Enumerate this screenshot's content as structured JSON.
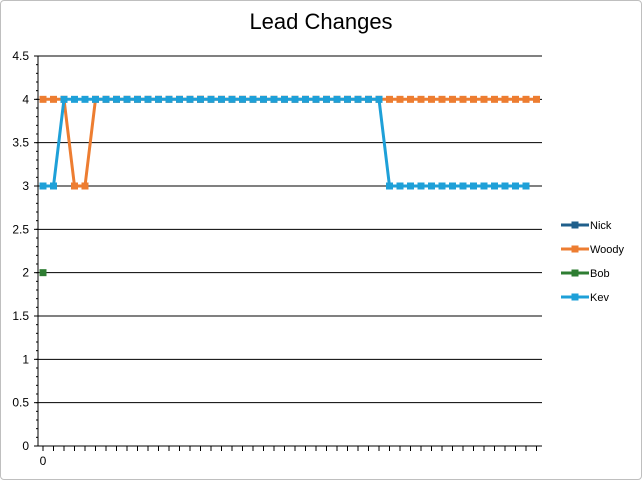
{
  "chart_data": {
    "type": "line",
    "title": "Lead Changes",
    "xlabel": "",
    "ylabel": "",
    "ylim": [
      0,
      4.5
    ],
    "y_ticks": [
      "0",
      "0.5",
      "1",
      "1.5",
      "2",
      "2.5",
      "3",
      "3.5",
      "4",
      "4.5"
    ],
    "x_tick_labels": [
      "0"
    ],
    "x_count": 48,
    "grid": true,
    "legend_position": "right",
    "series": [
      {
        "name": "Nick",
        "color": "#1f5f8b",
        "x": [],
        "values": []
      },
      {
        "name": "Woody",
        "color": "#ed7d31",
        "x": [
          0,
          1,
          2,
          3,
          4,
          5,
          6,
          7,
          8,
          9,
          10,
          11,
          12,
          13,
          14,
          15,
          15,
          16,
          17,
          18,
          19,
          20,
          21,
          22,
          23,
          24,
          25,
          26,
          27,
          28,
          29,
          30,
          31,
          32,
          33,
          34,
          35,
          36,
          37,
          38,
          39,
          40,
          41,
          42,
          43,
          44,
          45,
          46,
          47
        ],
        "values": [
          4,
          4,
          4,
          3,
          3,
          4,
          4,
          4,
          4,
          4,
          4,
          4,
          4,
          4,
          4,
          4,
          4,
          4,
          4,
          4,
          4,
          4,
          4,
          4,
          4,
          4,
          4,
          4,
          4,
          4,
          4,
          4,
          4,
          4,
          4,
          4,
          4,
          4,
          4,
          4,
          4,
          4,
          4,
          4,
          4,
          4,
          4,
          4,
          4
        ]
      },
      {
        "name": "Bob",
        "color": "#2e7d32",
        "x": [
          0
        ],
        "values": [
          2
        ]
      },
      {
        "name": "Kev",
        "color": "#1ea0d8",
        "x": [
          0,
          1,
          2,
          3,
          4,
          5,
          6,
          7,
          8,
          9,
          10,
          11,
          12,
          13,
          14,
          15,
          16,
          17,
          18,
          19,
          20,
          21,
          22,
          23,
          24,
          25,
          26,
          27,
          28,
          29,
          30,
          31,
          32,
          33,
          34,
          35,
          36,
          37,
          38,
          39,
          40,
          41,
          42,
          43,
          44,
          45,
          46
        ],
        "values": [
          3,
          3,
          4,
          4,
          4,
          4,
          4,
          4,
          4,
          4,
          4,
          4,
          4,
          4,
          4,
          4,
          4,
          4,
          4,
          4,
          4,
          4,
          4,
          4,
          4,
          4,
          4,
          4,
          4,
          4,
          4,
          4,
          4,
          3,
          3,
          3,
          3,
          3,
          3,
          3,
          3,
          3,
          3,
          3,
          3,
          3,
          3
        ]
      }
    ]
  }
}
